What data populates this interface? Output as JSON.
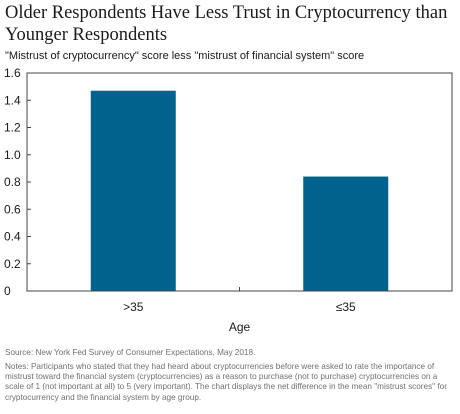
{
  "header": {
    "title": "Older Respondents Have Less Trust in Cryptocurrency than Younger Respondents",
    "subtitle": "\"Mistrust of cryptocurrency\" score less \"mistrust of financial system\" score"
  },
  "chart_data": {
    "type": "bar",
    "title": "Older Respondents Have Less Trust in Cryptocurrency than Younger Respondents",
    "subtitle": "\"Mistrust of cryptocurrency\" score less \"mistrust of financial system\" score",
    "categories": [
      ">35",
      "≤35"
    ],
    "values": [
      1.47,
      0.84
    ],
    "xlabel": "Age",
    "ylabel": "",
    "ylim": [
      0,
      1.6
    ],
    "yticks": [
      "0",
      "0.2",
      "0.4",
      "0.6",
      "0.8",
      "1.0",
      "1.2",
      "1.4",
      "1.6"
    ],
    "grid": false,
    "bar_color": "#00628d"
  },
  "footer": {
    "source": "Source: New York Fed Survey of Consumer Expectations, May 2018.",
    "notes": "Notes: Participants who stated that they had heard about cryptocurrencies before were asked to rate the importance of mistrust toward the financial system (cryptocurrencies) as a reason to purchase (not to purchase) cryptocurrencies on a scale of 1 (not important at all) to 5 (very important). The chart displays the net difference in the mean \"mistrust scores\" for cryptocurrency and the financial system by age group."
  }
}
